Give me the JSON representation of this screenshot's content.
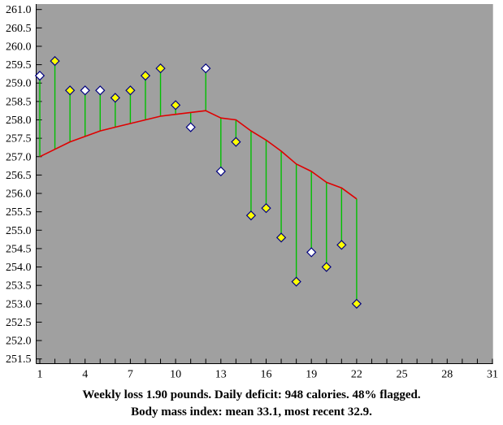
{
  "chart_data": {
    "type": "scatter",
    "title": "",
    "xlabel": "",
    "ylabel": "",
    "xlim": [
      1,
      31
    ],
    "ylim": [
      251.5,
      261.0
    ],
    "y_tick_step": 0.5,
    "x_tick_step": 1,
    "grid": "off",
    "legend": "none",
    "y_tick_labels": [
      "261.0",
      "260.5",
      "260.0",
      "259.5",
      "259.0",
      "258.5",
      "258.0",
      "257.5",
      "257.0",
      "256.5",
      "256.0",
      "255.5",
      "255.0",
      "254.5",
      "254.0",
      "253.5",
      "253.0",
      "252.5",
      "252.0",
      "251.5"
    ],
    "x_tick_labels": [
      "1",
      "4",
      "7",
      "10",
      "13",
      "16",
      "19",
      "22",
      "25",
      "28",
      "31"
    ],
    "x_labeled_days": [
      1,
      4,
      7,
      10,
      13,
      16,
      19,
      22,
      25,
      28,
      31
    ],
    "days": [
      1,
      2,
      3,
      4,
      5,
      6,
      7,
      8,
      9,
      10,
      11,
      12,
      13,
      14,
      15,
      16,
      17,
      18,
      19,
      20,
      21,
      22
    ],
    "series": [
      {
        "name": "daily-weight",
        "style": "diamond-markers",
        "values": [
          259.2,
          259.6,
          258.8,
          258.8,
          258.8,
          258.6,
          258.8,
          259.2,
          259.4,
          258.4,
          257.8,
          259.4,
          256.6,
          257.4,
          255.4,
          255.6,
          254.8,
          253.6,
          254.4,
          254.0,
          254.6,
          253.0
        ],
        "marker_fill": [
          "white",
          "yellow",
          "yellow",
          "white",
          "white",
          "yellow",
          "yellow",
          "yellow",
          "yellow",
          "yellow",
          "white",
          "white",
          "white",
          "yellow",
          "yellow",
          "yellow",
          "yellow",
          "yellow",
          "white",
          "yellow",
          "yellow",
          "yellow"
        ]
      },
      {
        "name": "trend",
        "style": "line",
        "values": [
          257.0,
          257.2,
          257.4,
          257.55,
          257.7,
          257.8,
          257.9,
          258.0,
          258.1,
          258.15,
          258.2,
          258.25,
          258.05,
          258.0,
          257.7,
          257.45,
          257.15,
          256.8,
          256.6,
          256.3,
          256.15,
          255.85
        ]
      }
    ],
    "colors": {
      "plot_background": "#A0A0A0",
      "outer_background": "#FFFFFF",
      "deviation_line": "#00C000",
      "trend_line": "#E00000",
      "marker_flagged": "#FFFF00",
      "marker_unflagged": "#FFFFFF",
      "marker_border": "#000080",
      "axis": "#000000"
    }
  },
  "caption": {
    "line1": "Weekly loss 1.90 pounds. Daily deficit: 948 calories. 48% flagged.",
    "line2": "Body mass index: mean 33.1, most recent 32.9."
  }
}
